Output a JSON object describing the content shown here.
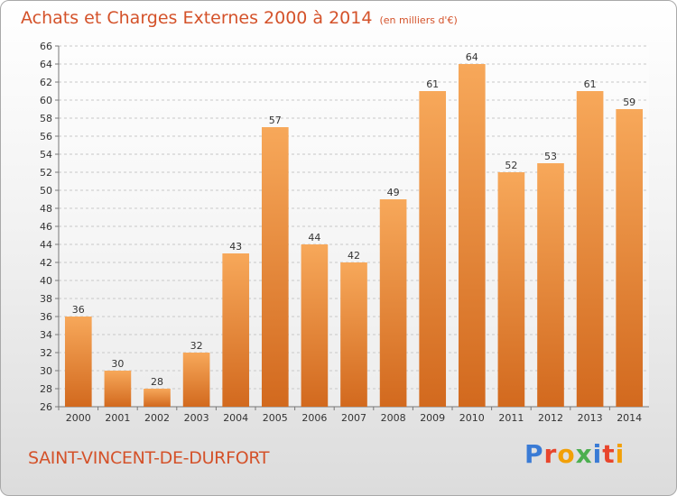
{
  "header": {
    "title": "Achats et Charges Externes 2000 à 2014",
    "unit": "(en milliers d'€)"
  },
  "footer": {
    "town": "SAINT-VINCENT-DE-DURFORT",
    "logo": [
      "P",
      "r",
      "o",
      "x",
      "i",
      "t",
      "i"
    ],
    "logo_colors": [
      "#3a7bd5",
      "#e8452c",
      "#f2a007",
      "#4caf50",
      "#3a7bd5",
      "#e8452c",
      "#f2a007"
    ]
  },
  "colors": {
    "title": "#d4522a",
    "bar_top": "#f7a85a",
    "bar_bottom": "#d2691e",
    "grid": "#c8c8c8"
  },
  "chart_data": {
    "type": "bar",
    "title": "Achats et Charges Externes 2000 à 2014",
    "subtitle": "(en milliers d'€)",
    "xlabel": "",
    "ylabel": "",
    "categories": [
      "2000",
      "2001",
      "2002",
      "2003",
      "2004",
      "2005",
      "2006",
      "2007",
      "2008",
      "2009",
      "2010",
      "2011",
      "2012",
      "2013",
      "2014"
    ],
    "values": [
      36,
      30,
      28,
      32,
      43,
      57,
      44,
      42,
      49,
      61,
      64,
      52,
      53,
      61,
      59
    ],
    "ylim": [
      26,
      66
    ],
    "yticks": [
      26,
      28,
      30,
      32,
      34,
      36,
      38,
      40,
      42,
      44,
      46,
      48,
      50,
      52,
      54,
      56,
      58,
      60,
      62,
      64,
      66
    ],
    "grid": true,
    "legend": "none"
  }
}
